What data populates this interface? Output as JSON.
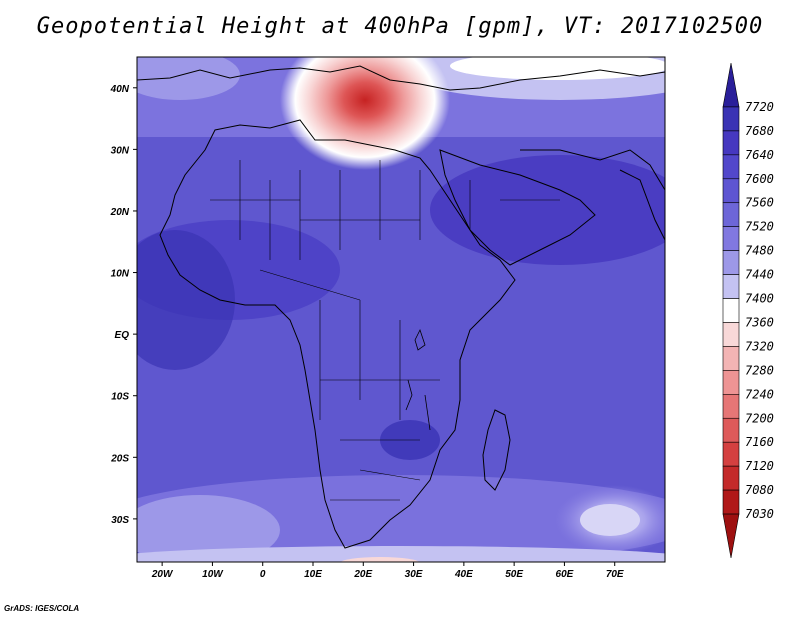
{
  "title": "Geopotential Height at 400hPa [gpm], VT: 2017102500",
  "credit": "GrADS: IGES/COLA",
  "map": {
    "lon_range": [
      -25,
      80
    ],
    "lat_range": [
      -37,
      45
    ],
    "lon_ticks": [
      "20W",
      "10W",
      "0",
      "10E",
      "20E",
      "30E",
      "40E",
      "50E",
      "60E",
      "70E"
    ],
    "lat_ticks": [
      "40N",
      "30N",
      "20N",
      "10N",
      "EQ",
      "10S",
      "20S",
      "30S"
    ]
  },
  "colorbar": {
    "levels": [
      "7720",
      "7680",
      "7640",
      "7600",
      "7560",
      "7520",
      "7480",
      "7440",
      "7400",
      "7360",
      "7320",
      "7280",
      "7240",
      "7200",
      "7160",
      "7120",
      "7080",
      "7030"
    ],
    "colors": [
      "#2a1f9a",
      "#3a33b4",
      "#4638c0",
      "#5247cb",
      "#5e55d2",
      "#6d66d8",
      "#8178e0",
      "#9d98e8",
      "#c4c2f2",
      "#ffffff",
      "#f8d8d8",
      "#f3b4b4",
      "#ee9494",
      "#e67676",
      "#de5a5a",
      "#d44040",
      "#c42a2a",
      "#b01818",
      "#9e1010"
    ]
  },
  "field": {
    "background": "#6058d0",
    "low_center_color": "#d63a3a"
  }
}
